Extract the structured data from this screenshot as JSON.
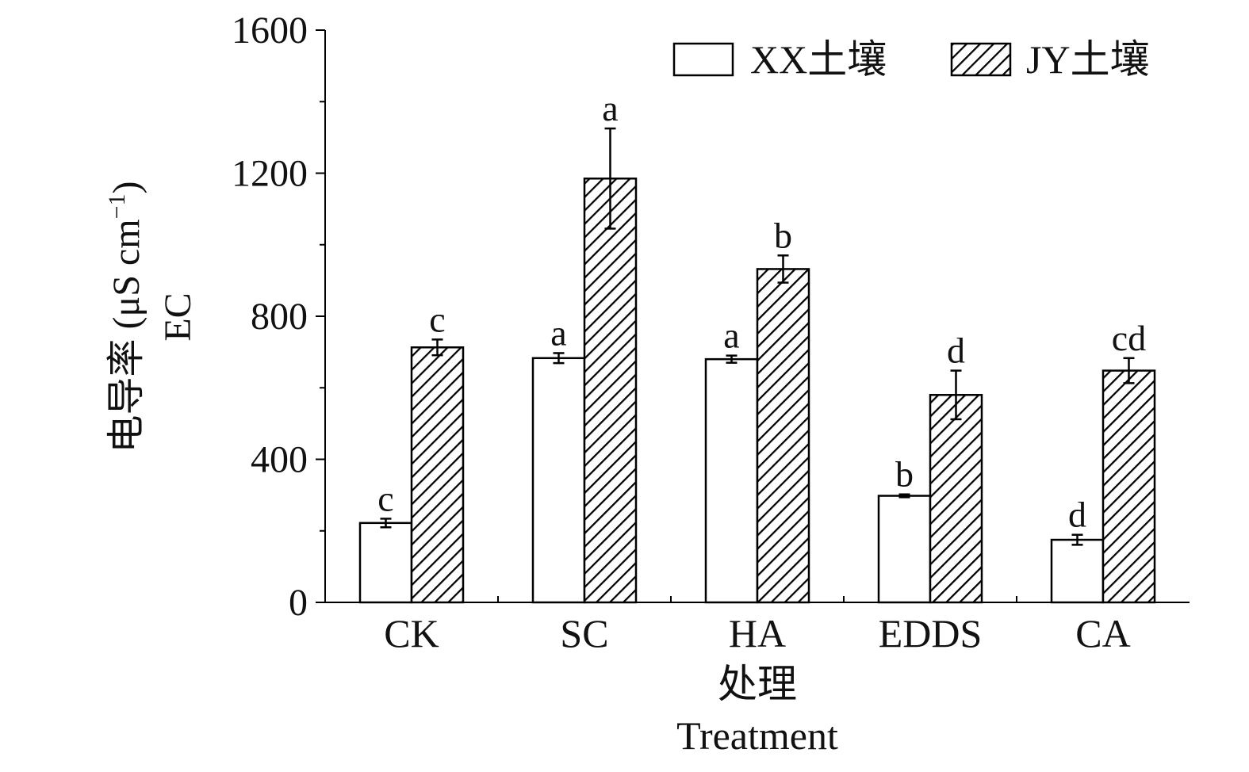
{
  "chart_data": {
    "type": "bar",
    "categories": [
      "CK",
      "SC",
      "HA",
      "EDDS",
      "CA"
    ],
    "series": [
      {
        "name": "XX土壤",
        "fill": "none",
        "values": [
          222,
          683,
          680,
          298,
          175
        ],
        "errors": [
          12,
          14,
          10,
          4,
          14
        ],
        "labels": [
          "c",
          "a",
          "a",
          "b",
          "d"
        ]
      },
      {
        "name": "JY土壤",
        "fill": "hatch",
        "values": [
          713,
          1185,
          932,
          580,
          648
        ],
        "errors": [
          22,
          140,
          38,
          68,
          35
        ],
        "labels": [
          "c",
          "a",
          "b",
          "d",
          "cd"
        ]
      }
    ],
    "yticks": [
      0,
      400,
      800,
      1200,
      1600
    ],
    "ylim": [
      0,
      1600
    ],
    "ylabel_line1": "电导率 (μS cm",
    "ylabel_sup": "−1",
    "ylabel_line1_end": ")",
    "ylabel_line2": "EC",
    "xlabel_line1": "处理",
    "xlabel_line2": "Treatment",
    "legend_position": "top-right",
    "colors": {
      "ink": "#111111",
      "background": "#ffffff"
    }
  }
}
